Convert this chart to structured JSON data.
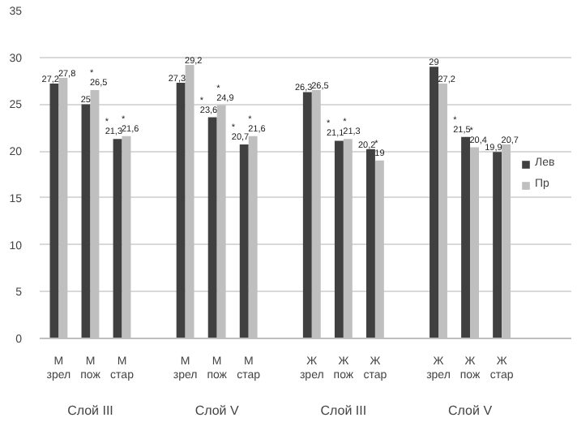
{
  "chart_data": {
    "type": "bar",
    "categories": [
      "М\nзрел",
      "М\nпож",
      "М\nстар",
      null,
      "М\nзрел",
      "М\nпож",
      "М\nстар",
      null,
      "Ж\nзрел",
      "Ж\nпож",
      "Ж\nстар",
      null,
      "Ж\nзрел",
      "Ж\nпож",
      "Ж\nстар"
    ],
    "series": [
      {
        "name": "Лев",
        "color": "#404040",
        "values": [
          27.2,
          25,
          21.3,
          null,
          27.3,
          23.6,
          20.7,
          null,
          26.3,
          21.1,
          20.2,
          null,
          29,
          21.5,
          19.9
        ],
        "value_labels": [
          "27,2",
          "25",
          "*\n21,3",
          null,
          "27,3",
          "*\n23,6",
          "*\n20,7",
          null,
          "26,3",
          "*\n21,1",
          "20,2",
          null,
          "29",
          "*\n21,5",
          "19,9"
        ]
      },
      {
        "name": "Пр",
        "color": "#bfbfbf",
        "values": [
          27.8,
          26.5,
          21.6,
          null,
          29.2,
          24.9,
          21.6,
          null,
          26.5,
          21.3,
          19,
          null,
          27.2,
          20.4,
          20.7
        ],
        "value_labels": [
          "27,8",
          "*\n26,5",
          "*\n21,6",
          null,
          "29,2",
          "*\n24,9",
          "*\n21,6",
          null,
          "26,5",
          "*\n21,3",
          "*\n19",
          null,
          "27,2",
          "*\n20,4",
          "20,7"
        ]
      }
    ],
    "annotations": [
      "Слой III",
      "Слой V",
      "Слой III",
      "Слой V"
    ],
    "ylim": [
      0,
      35
    ],
    "yticks": [
      0,
      5,
      10,
      15,
      20,
      25,
      30,
      35
    ],
    "grid": "y",
    "legend": "right"
  }
}
